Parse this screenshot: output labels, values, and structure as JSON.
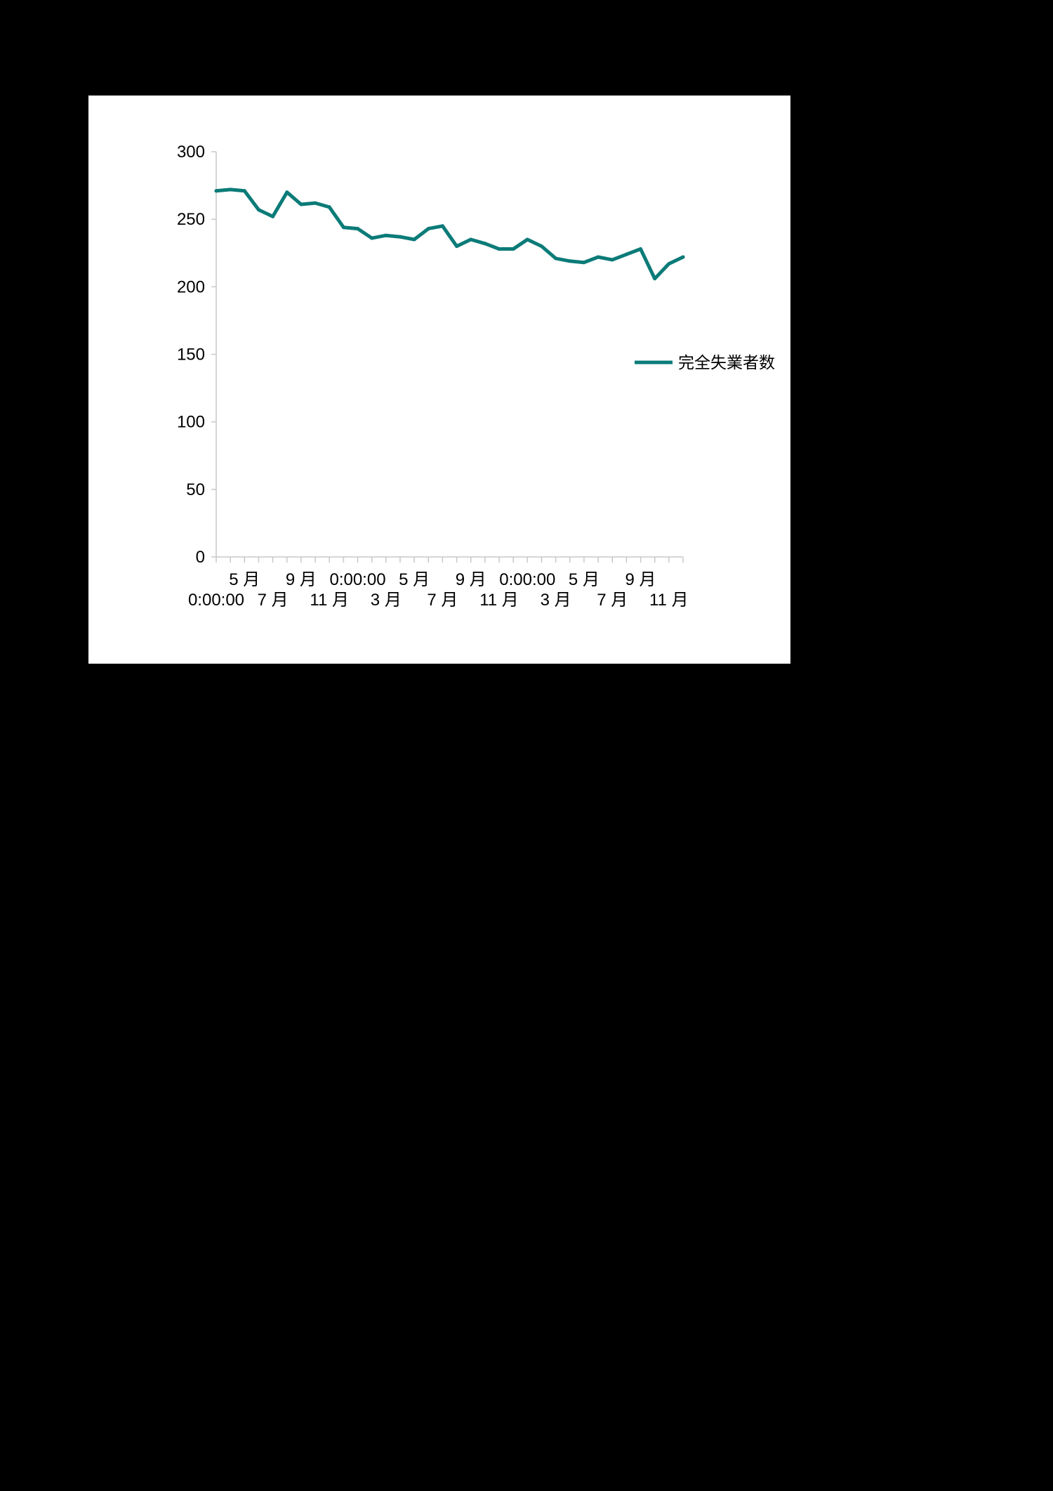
{
  "chart_data": {
    "type": "line",
    "title": "",
    "xlabel": "",
    "ylabel": "",
    "ylim": [
      0,
      300
    ],
    "y_ticks": [
      "0",
      "50",
      "100",
      "150",
      "200",
      "250",
      "300"
    ],
    "x_tick_labels_row1": [
      "5 月",
      "9 月",
      "0:00:00",
      "5 月",
      "9 月",
      "0:00:00",
      "5 月",
      "9 月"
    ],
    "x_tick_labels_row2": [
      "0:00:00",
      "7 月",
      "11 月",
      "3 月",
      "7 月",
      "11 月",
      "3 月",
      "7 月",
      "11 月"
    ],
    "grid": false,
    "legend_position": "right",
    "series": [
      {
        "name": "完全失業者数",
        "color": "#0b7b78",
        "values": [
          271,
          272,
          271,
          257,
          252,
          270,
          261,
          262,
          259,
          244,
          243,
          236,
          238,
          237,
          235,
          243,
          245,
          230,
          235,
          232,
          228,
          228,
          235,
          230,
          221,
          219,
          218,
          222,
          220,
          224,
          228,
          206,
          217,
          222
        ]
      }
    ]
  }
}
